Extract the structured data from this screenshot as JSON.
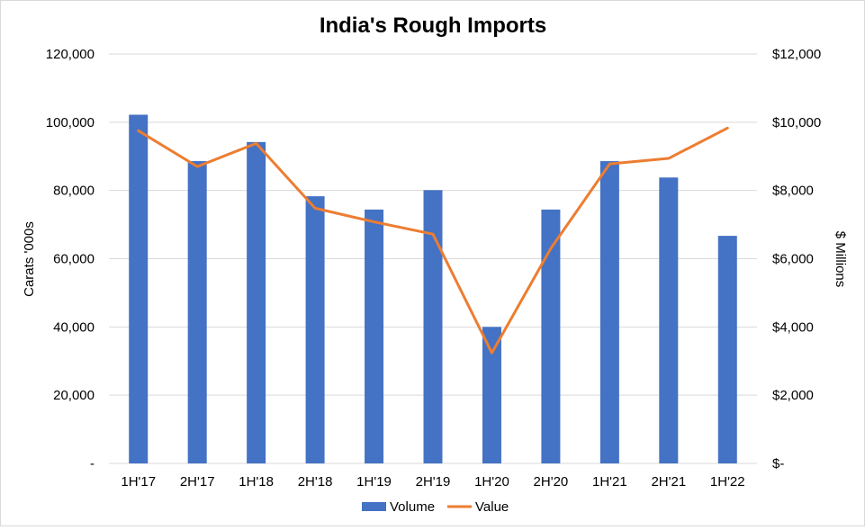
{
  "chart_data": {
    "type": "bar",
    "title": "India's Rough Imports",
    "categories": [
      "1H'17",
      "2H'17",
      "1H'18",
      "2H'18",
      "1H'19",
      "2H'19",
      "1H'20",
      "2H'20",
      "1H'21",
      "2H'21",
      "1H'22"
    ],
    "series": [
      {
        "name": "Volume",
        "type": "bar",
        "axis": "left",
        "color": "#4472C4",
        "values": [
          102200,
          88600,
          94200,
          78300,
          74400,
          80100,
          40000,
          74400,
          88600,
          83800,
          66700
        ]
      },
      {
        "name": "Value",
        "type": "line",
        "axis": "right",
        "color": "#ED7D31",
        "values": [
          9750,
          8700,
          9380,
          7480,
          7080,
          6720,
          3240,
          6300,
          8780,
          8940,
          9830
        ]
      }
    ],
    "y_left": {
      "label": "Carats '000s",
      "lim": [
        0,
        120000
      ],
      "ticks": [
        0,
        20000,
        40000,
        60000,
        80000,
        100000,
        120000
      ],
      "tick_labels": [
        "-",
        "20,000",
        "40,000",
        "60,000",
        "80,000",
        "100,000",
        "120,000"
      ]
    },
    "y_right": {
      "label": "$ Millions",
      "lim": [
        0,
        12000
      ],
      "ticks": [
        0,
        2000,
        4000,
        6000,
        8000,
        10000,
        12000
      ],
      "tick_labels": [
        "$-",
        "$2,000",
        "$4,000",
        "$6,000",
        "$8,000",
        "$10,000",
        "$12,000"
      ]
    },
    "grid": true,
    "legend_position": "bottom"
  }
}
